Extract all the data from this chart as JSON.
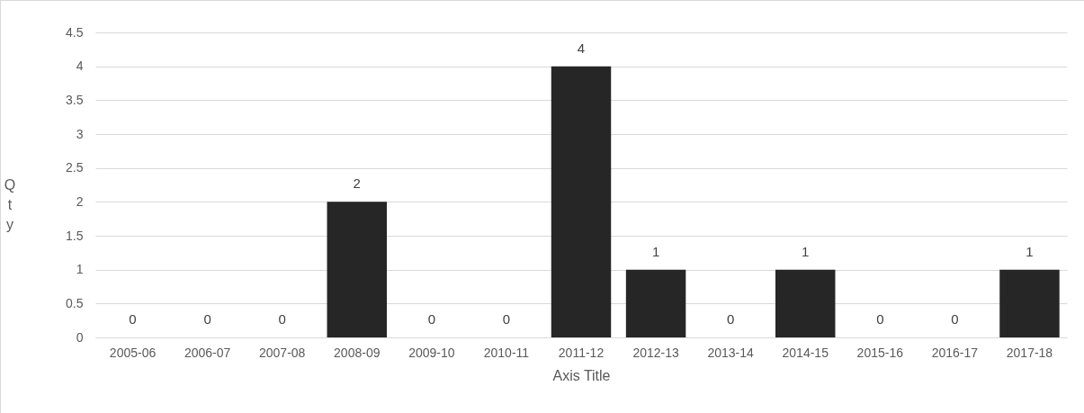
{
  "chart_data": {
    "type": "bar",
    "xlabel": "Axis Title",
    "ylabel": "Qty",
    "categories": [
      "2005-06",
      "2006-07",
      "2007-08",
      "2008-09",
      "2009-10",
      "2010-11",
      "2011-12",
      "2012-13",
      "2013-14",
      "2014-15",
      "2015-16",
      "2016-17",
      "2017-18"
    ],
    "values": [
      0,
      0,
      0,
      2,
      0,
      0,
      4,
      1,
      0,
      1,
      0,
      0,
      1
    ],
    "color": "#262626",
    "ylim": [
      0,
      4.5
    ],
    "yticks": [
      0,
      0.5,
      1,
      1.5,
      2,
      2.5,
      3,
      3.5,
      4,
      4.5
    ],
    "grid": "y",
    "data_labels": true
  }
}
